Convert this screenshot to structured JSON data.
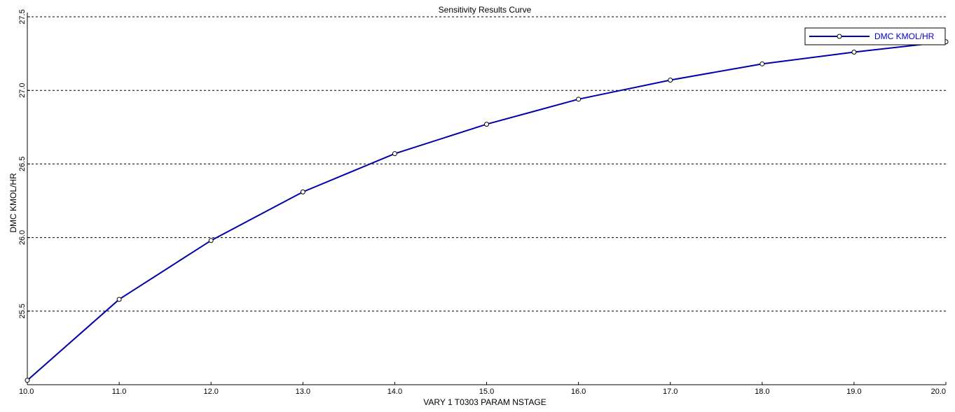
{
  "chart_data": {
    "type": "line",
    "title": "Sensitivity Results Curve",
    "xlabel": "VARY   1 T0303 PARAM NSTAGE",
    "ylabel": "DMC KMOL/HR",
    "xlim": [
      10,
      20
    ],
    "ylim": [
      25.0,
      27.5
    ],
    "x_ticks": [
      "10.0",
      "11.0",
      "12.0",
      "13.0",
      "14.0",
      "15.0",
      "16.0",
      "17.0",
      "18.0",
      "19.0",
      "20.0"
    ],
    "y_ticks": [
      "25.5",
      "26.0",
      "26.5",
      "27.0",
      "27.5"
    ],
    "grid": "horizontal dashed",
    "legend_position": "top-right",
    "series": [
      {
        "name": "DMC KMOL/HR",
        "color": "#0000aa",
        "marker": "open-circle",
        "x": [
          10,
          11,
          12,
          13,
          14,
          15,
          16,
          17,
          18,
          19,
          20
        ],
        "y": [
          25.03,
          25.58,
          25.98,
          26.31,
          26.57,
          26.77,
          26.94,
          27.07,
          27.18,
          27.26,
          27.33
        ]
      }
    ]
  }
}
